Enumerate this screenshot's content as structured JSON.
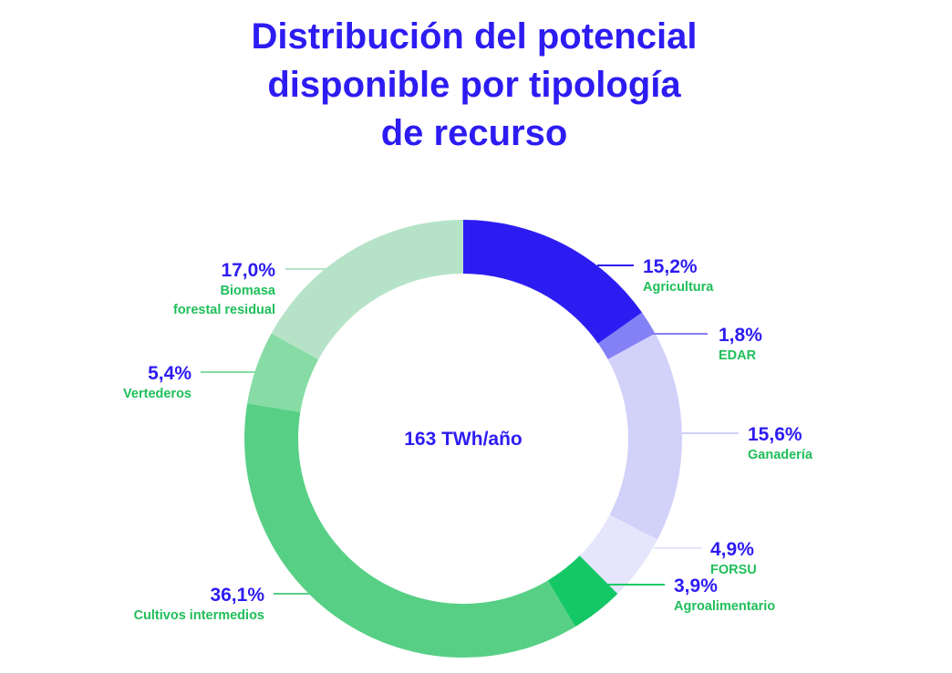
{
  "chart_data": {
    "type": "pie",
    "title_lines": [
      "Distribución del potencial",
      "disponible por tipología",
      "de recurso"
    ],
    "center_label": "163 TWh/año",
    "slices": [
      {
        "label_lines": [
          "Agricultura"
        ],
        "value": 15.2,
        "value_label": "15,2%",
        "color": "#2d1cf2"
      },
      {
        "label_lines": [
          "EDAR"
        ],
        "value": 1.8,
        "value_label": "1,8%",
        "color": "#8480f5"
      },
      {
        "label_lines": [
          "Ganadería"
        ],
        "value": 15.6,
        "value_label": "15,6%",
        "color": "#d1d1fa"
      },
      {
        "label_lines": [
          "FORSU"
        ],
        "value": 4.9,
        "value_label": "4,9%",
        "color": "#e5e5fc"
      },
      {
        "label_lines": [
          "Agroalimentario"
        ],
        "value": 3.9,
        "value_label": "3,9%",
        "color": "#14c866"
      },
      {
        "label_lines": [
          "Cultivos intermedios"
        ],
        "value": 36.1,
        "value_label": "36,1%",
        "color": "#57d085"
      },
      {
        "label_lines": [
          "Vertederos"
        ],
        "value": 5.4,
        "value_label": "5,4%",
        "color": "#86dca4"
      },
      {
        "label_lines": [
          "Biomasa",
          "forestal residual"
        ],
        "value": 17.0,
        "value_label": "17,0%",
        "color": "#b6e3c7"
      }
    ],
    "label_color": "#1fbf5a",
    "value_color": "#2d1cf2"
  }
}
